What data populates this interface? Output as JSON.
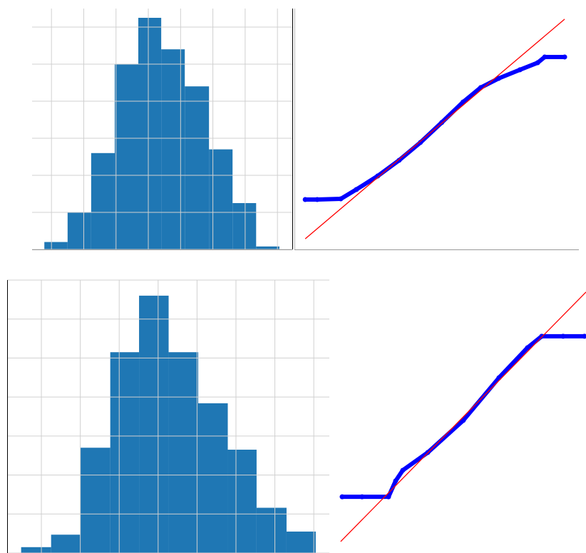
{
  "chart_data": [
    {
      "type": "histogram",
      "color": "#1f77b4",
      "bins": [
        -3.22,
        -2.5,
        -1.77,
        -1.04,
        -0.31,
        0.4,
        1.13,
        1.88,
        2.61,
        3.34,
        4.06
      ],
      "values": [
        0.2,
        1.0,
        2.6,
        5.0,
        6.25,
        5.4,
        4.4,
        2.7,
        1.25,
        0.08
      ],
      "xlim": [
        -3.6,
        4.46
      ],
      "ylim": [
        0,
        6.5
      ],
      "xticks": [
        -3,
        -2,
        -1,
        0,
        1,
        2,
        3,
        4
      ],
      "yticks": [
        0,
        1,
        2,
        3,
        4,
        5,
        6
      ],
      "grid": true
    },
    {
      "type": "qq",
      "xlim": [
        0,
        100
      ],
      "ylim": [
        0,
        100
      ],
      "series": [
        {
          "color": "#0000ff",
          "x": [
            3.8,
            8,
            16.3,
            21.8,
            29.3,
            36.8,
            44.3,
            51.8,
            59.3,
            65.5,
            71.8,
            79.3,
            85.5,
            88,
            95
          ],
          "values": [
            20.7,
            20.7,
            21.0,
            24.9,
            30.5,
            37.0,
            44.4,
            52.7,
            61.2,
            67.2,
            71.0,
            74.6,
            77.5,
            79.9,
            79.9
          ]
        },
        {
          "color": "#ff0000",
          "x": [
            3.8,
            95
          ],
          "values": [
            4.4,
            95.6
          ]
        }
      ]
    },
    {
      "type": "histogram",
      "color": "#1f77b4",
      "bins": [
        -3.52,
        -2.75,
        -2.0,
        -1.23,
        -0.49,
        0.27,
        1.03,
        1.79,
        2.53,
        3.3,
        4.05
      ],
      "values": [
        0.15,
        0.47,
        2.7,
        5.15,
        6.6,
        5.15,
        3.84,
        2.65,
        1.16,
        0.55
      ],
      "xlim": [
        -3.88,
        4.4
      ],
      "ylim": [
        0,
        7
      ],
      "xticks": [
        -3,
        -2,
        -1,
        0,
        1,
        2,
        3,
        4
      ],
      "yticks": [
        0,
        1,
        2,
        3,
        4,
        5,
        6,
        7
      ],
      "grid": true
    },
    {
      "type": "qq",
      "xlim": [
        0,
        100
      ],
      "ylim": [
        0,
        100
      ],
      "series": [
        {
          "color": "#0000ff",
          "x": [
            4.2,
            12,
            22.4,
            25.2,
            28.0,
            37.8,
            51.8,
            65.8,
            77.0,
            82.6,
            91.0,
            99.4
          ],
          "values": [
            20.6,
            20.6,
            20.6,
            26.4,
            30.3,
            36.8,
            48.6,
            64.2,
            75.2,
            79.4,
            79.4,
            79.4
          ]
        },
        {
          "color": "#ff0000",
          "x": [
            3.6,
            100
          ],
          "values": [
            4.2,
            95.6
          ]
        }
      ]
    }
  ]
}
